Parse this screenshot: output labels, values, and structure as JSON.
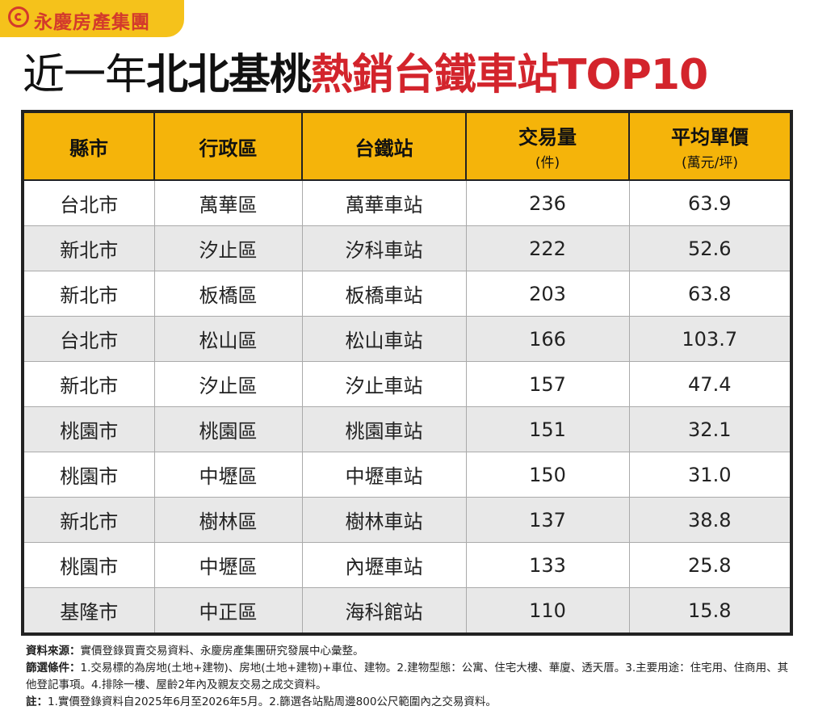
{
  "brand": {
    "name": "永慶房產集團",
    "color": "#d33a2c"
  },
  "title": {
    "part1": "近一年",
    "part2": "北北基桃",
    "part3": "熱銷台鐵車站TOP10"
  },
  "table": {
    "headers": [
      {
        "main": "縣市",
        "sub": ""
      },
      {
        "main": "行政區",
        "sub": ""
      },
      {
        "main": "台鐵站",
        "sub": ""
      },
      {
        "main": "交易量",
        "sub": "(件)"
      },
      {
        "main": "平均單價",
        "sub": "(萬元/坪)"
      }
    ],
    "rows": [
      [
        "台北市",
        "萬華區",
        "萬華車站",
        "236",
        "63.9"
      ],
      [
        "新北市",
        "汐止區",
        "汐科車站",
        "222",
        "52.6"
      ],
      [
        "新北市",
        "板橋區",
        "板橋車站",
        "203",
        "63.8"
      ],
      [
        "台北市",
        "松山區",
        "松山車站",
        "166",
        "103.7"
      ],
      [
        "新北市",
        "汐止區",
        "汐止車站",
        "157",
        "47.4"
      ],
      [
        "桃園市",
        "桃園區",
        "桃園車站",
        "151",
        "32.1"
      ],
      [
        "桃園市",
        "中壢區",
        "中壢車站",
        "150",
        "31.0"
      ],
      [
        "新北市",
        "樹林區",
        "樹林車站",
        "137",
        "38.8"
      ],
      [
        "桃園市",
        "中壢區",
        "內壢車站",
        "133",
        "25.8"
      ],
      [
        "基隆市",
        "中正區",
        "海科館站",
        "110",
        "15.8"
      ]
    ]
  },
  "notes": [
    {
      "label": "資料來源：",
      "text": "實價登錄買賣交易資料、永慶房產集團研究發展中心彙整。"
    },
    {
      "label": "篩選條件：",
      "text": "1.交易標的為房地(土地+建物)、房地(土地+建物)+車位、建物。2.建物型態：公寓、住宅大樓、華廈、透天厝。3.主要用途：住宅用、住商用、其他登記事項。4.排除一樓、屋齡2年內及親友交易之成交資料。"
    },
    {
      "label": "註：",
      "text": "1.實價登錄資料自2025年6月至2026年5月。2.篩選各站點周邊800公尺範圍內之交易資料。"
    }
  ]
}
